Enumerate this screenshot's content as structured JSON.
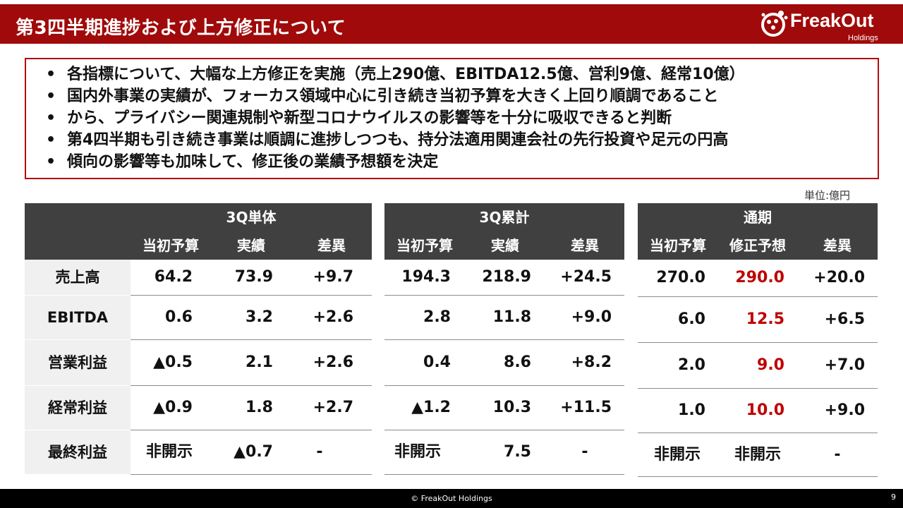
{
  "title": "第3四半期進捗および上方修正について",
  "logo": {
    "word": "FreakOut",
    "sub": "Holdings"
  },
  "bullets": [
    {
      "line1": "各指標について、大幅な上方修正を実施（売上290億、EBITDA12.5億、営利9億、経常10億）",
      "line2": ""
    },
    {
      "line1": "国内外事業の実績が、フォーカス領域中心に引き続き当初予算を大きく上回り順調であること",
      "line2": "から、プライバシー関連規制や新型コロナウイルスの影響等を十分に吸収できると判断"
    },
    {
      "line1": "第4四半期も引き続き事業は順調に進捗しつつも、持分法適用関連会社の先行投資や足元の円高",
      "line2": "傾向の影響等も加味して、修正後の業績予想額を決定"
    }
  ],
  "unit": "単位:億円",
  "row_labels": [
    "売上高",
    "EBITDA",
    "営業利益",
    "経常利益",
    "最終利益"
  ],
  "tables": {
    "q3": {
      "title": "3Q単体",
      "cols": [
        "当初予算",
        "実績",
        "差異"
      ],
      "rows": [
        [
          "64.2",
          "73.9",
          "+9.7"
        ],
        [
          "0.6",
          "3.2",
          "+2.6"
        ],
        [
          "▲0.5",
          "2.1",
          "+2.6"
        ],
        [
          "▲0.9",
          "1.8",
          "+2.7"
        ],
        [
          "非開示",
          "▲0.7",
          "-"
        ]
      ]
    },
    "cum": {
      "title": "3Q累計",
      "cols": [
        "当初予算",
        "実績",
        "差異"
      ],
      "rows": [
        [
          "194.3",
          "218.9",
          "+24.5"
        ],
        [
          "2.8",
          "11.8",
          "+9.0"
        ],
        [
          "0.4",
          "8.6",
          "+8.2"
        ],
        [
          "▲1.2",
          "10.3",
          "+11.5"
        ],
        [
          "非開示",
          "7.5",
          "-"
        ]
      ]
    },
    "full": {
      "title": "通期",
      "cols": [
        "当初予算",
        "修正予想",
        "差異"
      ],
      "rows": [
        [
          "270.0",
          "290.0",
          "+20.0"
        ],
        [
          "6.0",
          "12.5",
          "+6.5"
        ],
        [
          "2.0",
          "9.0",
          "+7.0"
        ],
        [
          "1.0",
          "10.0",
          "+9.0"
        ],
        [
          "非開示",
          "非開示",
          "-"
        ]
      ]
    }
  },
  "colors": {
    "brand_red": "#a00a0a",
    "revised_red": "#c00000",
    "header_gray": "#404040"
  },
  "footer": "© FreakOut Holdings",
  "page_number": "9"
}
